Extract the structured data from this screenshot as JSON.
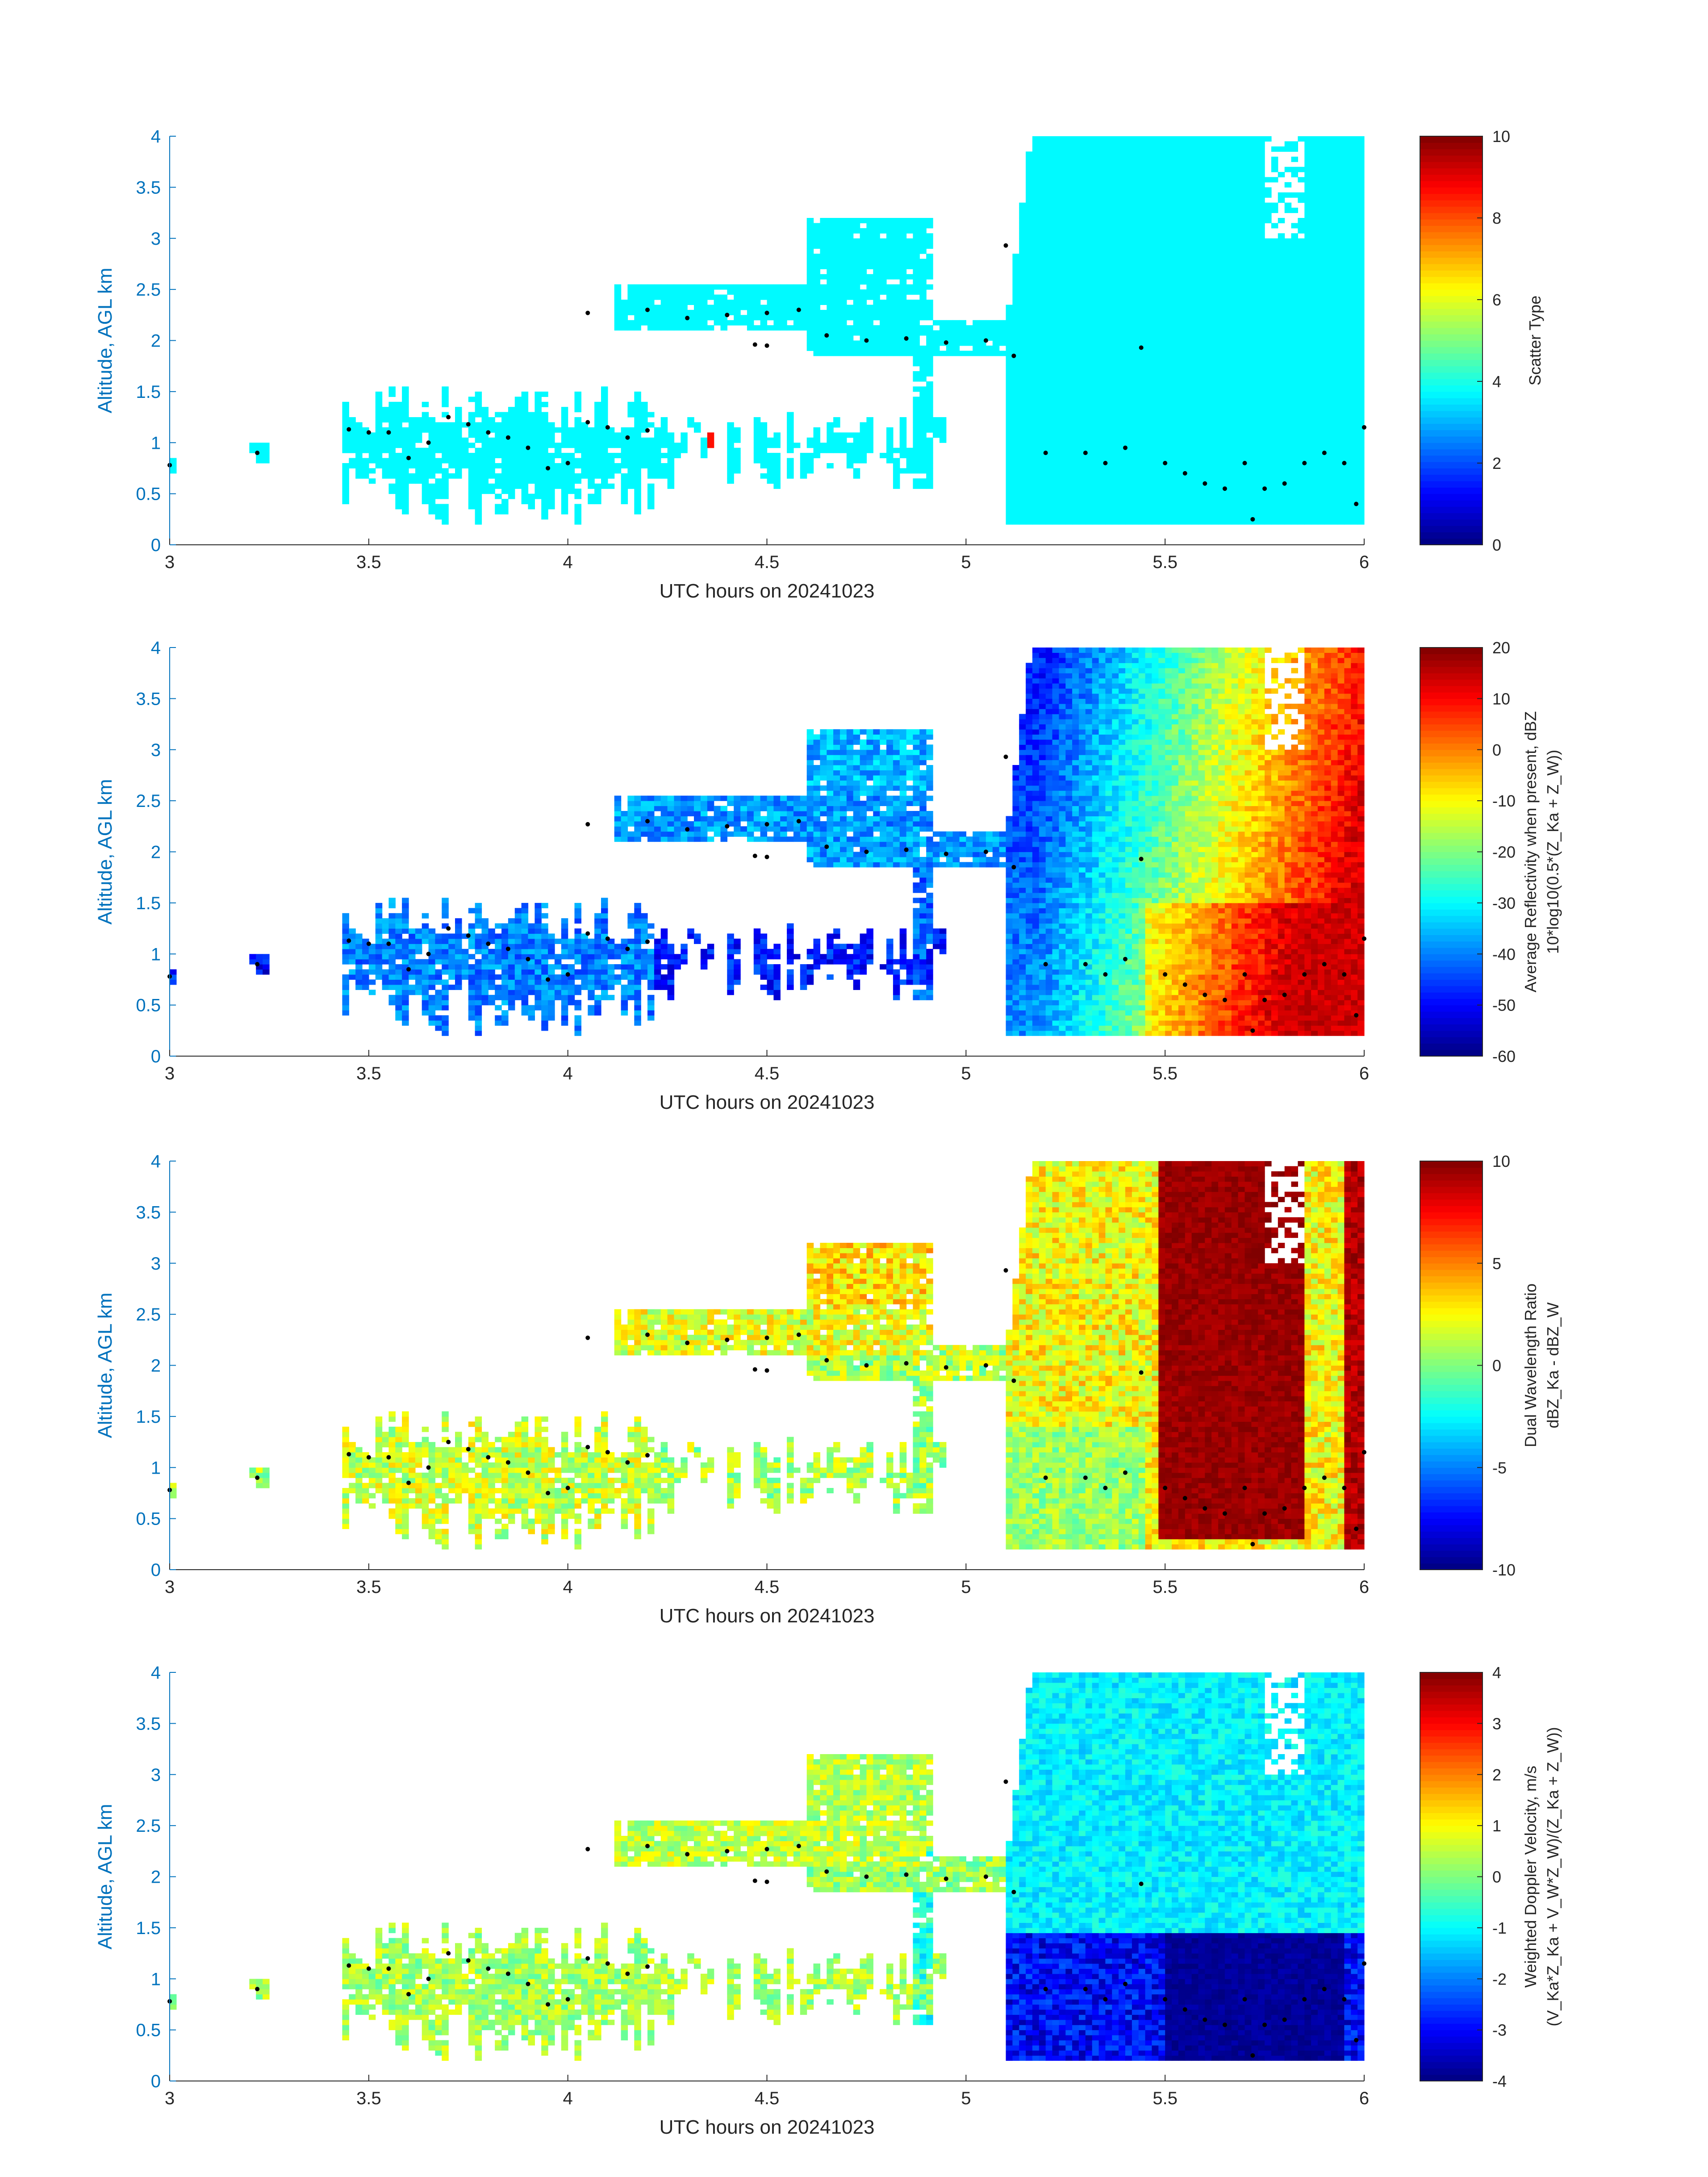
{
  "figure": {
    "panels_count": 4
  },
  "chart_data": [
    {
      "type": "heatmap",
      "title": "",
      "xlabel": "UTC hours on 20241023",
      "ylabel": "Altitude, AGL km",
      "xlim": [
        3,
        6
      ],
      "ylim": [
        0,
        4
      ],
      "xticks": [
        3,
        3.5,
        4,
        4.5,
        5,
        5.5,
        6
      ],
      "xtick_labels": [
        "3",
        "3.5",
        "4",
        "4.5",
        "5",
        "5.5",
        "6"
      ],
      "yticks": [
        0,
        0.5,
        1,
        1.5,
        2,
        2.5,
        3,
        3.5,
        4
      ],
      "ytick_labels": [
        "0",
        "0.5",
        "1",
        "1.5",
        "2",
        "2.5",
        "3",
        "3.5",
        "4"
      ],
      "colorbar": {
        "label_lines": [
          "Scatter Type"
        ],
        "range": [
          0,
          10
        ],
        "ticks": [
          0,
          2,
          4,
          6,
          8,
          10
        ],
        "tick_labels": [
          "0",
          "2",
          "4",
          "6",
          "8",
          "10"
        ],
        "colormap": "jet"
      },
      "field": "scatter_type",
      "dominant_value": 3.7,
      "notes_values": {
        "isolated_high_value": 8.6
      }
    },
    {
      "type": "heatmap",
      "title": "",
      "xlabel": "UTC hours on 20241023",
      "ylabel": "Altitude, AGL km",
      "xlim": [
        3,
        6
      ],
      "ylim": [
        0,
        4
      ],
      "xticks": [
        3,
        3.5,
        4,
        4.5,
        5,
        5.5,
        6
      ],
      "xtick_labels": [
        "3",
        "3.5",
        "4",
        "4.5",
        "5",
        "5.5",
        "6"
      ],
      "yticks": [
        0,
        0.5,
        1,
        1.5,
        2,
        2.5,
        3,
        3.5,
        4
      ],
      "ytick_labels": [
        "0",
        "0.5",
        "1",
        "1.5",
        "2",
        "2.5",
        "3",
        "3.5",
        "4"
      ],
      "colorbar": {
        "label_lines": [
          "Average Reflectivity when present, dBZ",
          "10*log10(0.5*(Z_Ka + Z_W))"
        ],
        "range": [
          -60,
          20
        ],
        "ticks": [
          -60,
          -50,
          -40,
          -30,
          -20,
          -10,
          0,
          10,
          20
        ],
        "tick_labels": [
          "-60",
          "-50",
          "-40",
          "-30",
          "-20",
          "-10",
          "0",
          "10",
          "20"
        ],
        "colormap": "jet"
      },
      "field": "reflectivity"
    },
    {
      "type": "heatmap",
      "title": "",
      "xlabel": "UTC hours on 20241023",
      "ylabel": "Altitude, AGL km",
      "xlim": [
        3,
        6
      ],
      "ylim": [
        0,
        4
      ],
      "xticks": [
        3,
        3.5,
        4,
        4.5,
        5,
        5.5,
        6
      ],
      "xtick_labels": [
        "3",
        "3.5",
        "4",
        "4.5",
        "5",
        "5.5",
        "6"
      ],
      "yticks": [
        0,
        0.5,
        1,
        1.5,
        2,
        2.5,
        3,
        3.5,
        4
      ],
      "ytick_labels": [
        "0",
        "0.5",
        "1",
        "1.5",
        "2",
        "2.5",
        "3",
        "3.5",
        "4"
      ],
      "colorbar": {
        "label_lines": [
          "Dual Wavelength Ratio",
          "dBZ_Ka - dBZ_W"
        ],
        "range": [
          -10,
          10
        ],
        "ticks": [
          -10,
          -5,
          0,
          5,
          10
        ],
        "tick_labels": [
          "-10",
          "-5",
          "0",
          "5",
          "10"
        ],
        "colormap": "jet"
      },
      "field": "dwr"
    },
    {
      "type": "heatmap",
      "title": "",
      "xlabel": "UTC hours on 20241023",
      "ylabel": "Altitude, AGL km",
      "xlim": [
        3,
        6
      ],
      "ylim": [
        0,
        4
      ],
      "xticks": [
        3,
        3.5,
        4,
        4.5,
        5,
        5.5,
        6
      ],
      "xtick_labels": [
        "3",
        "3.5",
        "4",
        "4.5",
        "5",
        "5.5",
        "6"
      ],
      "yticks": [
        0,
        0.5,
        1,
        1.5,
        2,
        2.5,
        3,
        3.5,
        4
      ],
      "ytick_labels": [
        "0",
        "0.5",
        "1",
        "1.5",
        "2",
        "2.5",
        "3",
        "3.5",
        "4"
      ],
      "colorbar": {
        "label_lines": [
          "Weighted Doppler Velocity, m/s",
          "(V_Ka*Z_Ka + V_W*Z_W)/(Z_Ka + Z_W))"
        ],
        "range": [
          -4,
          4
        ],
        "ticks": [
          -4,
          -3,
          -2,
          -1,
          0,
          1,
          2,
          3,
          4
        ],
        "tick_labels": [
          "-4",
          "-3",
          "-2",
          "-1",
          "0",
          "1",
          "2",
          "3",
          "4"
        ],
        "colormap": "jet"
      },
      "field": "velocity"
    }
  ],
  "cloud_regions": [
    {
      "name": "low_layer_early",
      "t": [
        3.43,
        4.22
      ],
      "z": [
        0.2,
        1.55
      ],
      "ref": -40,
      "dwr": 1.5,
      "vel": 0.3
    },
    {
      "name": "isolated_patch_3.0",
      "t": [
        3.0,
        3.02
      ],
      "z": [
        0.7,
        0.85
      ],
      "ref": -48,
      "dwr": 0.5,
      "vel": 0.2
    },
    {
      "name": "isolated_patch_3.2",
      "t": [
        3.2,
        3.25
      ],
      "z": [
        0.8,
        1.0
      ],
      "ref": -50,
      "dwr": 0.5,
      "vel": 0.3
    },
    {
      "name": "scattered_low_mid",
      "t": [
        4.22,
        4.95
      ],
      "z": [
        0.55,
        1.3
      ],
      "ref": -48,
      "dwr": 0.8,
      "vel": 0.3
    },
    {
      "name": "elevated_band",
      "t": [
        4.12,
        4.9
      ],
      "z": [
        2.1,
        2.55
      ],
      "ref": -38,
      "dwr": 2.0,
      "vel": 0.5
    },
    {
      "name": "elevated_band_upper",
      "t": [
        4.6,
        4.92
      ],
      "z": [
        2.3,
        3.2
      ],
      "ref": -36,
      "dwr": 3.0,
      "vel": 0.4
    },
    {
      "name": "middle_band",
      "t": [
        4.6,
        5.1
      ],
      "z": [
        1.85,
        2.2
      ],
      "ref": -38,
      "dwr": 1.0,
      "vel": 0.2
    },
    {
      "name": "fall_streak_4.9",
      "t": [
        4.86,
        4.92
      ],
      "z": [
        0.55,
        2.8
      ],
      "ref": -42,
      "dwr": 0.5,
      "vel": -0.8
    },
    {
      "name": "deep_cloud",
      "t": [
        5.1,
        6.0
      ],
      "z": [
        0.2,
        4.0
      ],
      "ref": -8,
      "dwr": 4.0,
      "vel": -1.0
    }
  ],
  "profile_dots": [
    {
      "t": 3.0,
      "z": 0.78
    },
    {
      "t": 3.22,
      "z": 0.9
    },
    {
      "t": 3.45,
      "z": 1.13
    },
    {
      "t": 3.5,
      "z": 1.1
    },
    {
      "t": 3.55,
      "z": 1.1
    },
    {
      "t": 3.6,
      "z": 0.85
    },
    {
      "t": 3.65,
      "z": 1.0
    },
    {
      "t": 3.7,
      "z": 1.25
    },
    {
      "t": 3.75,
      "z": 1.18
    },
    {
      "t": 3.8,
      "z": 1.1
    },
    {
      "t": 3.85,
      "z": 1.05
    },
    {
      "t": 3.9,
      "z": 0.95
    },
    {
      "t": 3.95,
      "z": 0.75
    },
    {
      "t": 4.0,
      "z": 0.8
    },
    {
      "t": 4.05,
      "z": 1.2
    },
    {
      "t": 4.1,
      "z": 1.15
    },
    {
      "t": 4.15,
      "z": 1.05
    },
    {
      "t": 4.2,
      "z": 1.12
    },
    {
      "t": 4.05,
      "z": 2.27
    },
    {
      "t": 4.2,
      "z": 2.3
    },
    {
      "t": 4.3,
      "z": 2.22
    },
    {
      "t": 4.4,
      "z": 2.25
    },
    {
      "t": 4.5,
      "z": 2.27
    },
    {
      "t": 4.58,
      "z": 2.3
    },
    {
      "t": 4.47,
      "z": 1.96
    },
    {
      "t": 4.5,
      "z": 1.95
    },
    {
      "t": 4.65,
      "z": 2.05
    },
    {
      "t": 4.75,
      "z": 2.0
    },
    {
      "t": 4.85,
      "z": 2.02
    },
    {
      "t": 4.95,
      "z": 1.98
    },
    {
      "t": 5.05,
      "z": 2.0
    },
    {
      "t": 5.1,
      "z": 2.93
    },
    {
      "t": 5.12,
      "z": 1.85
    },
    {
      "t": 5.2,
      "z": 0.9
    },
    {
      "t": 5.3,
      "z": 0.9
    },
    {
      "t": 5.35,
      "z": 0.8
    },
    {
      "t": 5.4,
      "z": 0.95
    },
    {
      "t": 5.44,
      "z": 1.93
    },
    {
      "t": 5.5,
      "z": 0.8
    },
    {
      "t": 5.55,
      "z": 0.7
    },
    {
      "t": 5.6,
      "z": 0.6
    },
    {
      "t": 5.65,
      "z": 0.55
    },
    {
      "t": 5.7,
      "z": 0.8
    },
    {
      "t": 5.72,
      "z": 0.25
    },
    {
      "t": 5.75,
      "z": 0.55
    },
    {
      "t": 5.8,
      "z": 0.6
    },
    {
      "t": 5.85,
      "z": 0.8
    },
    {
      "t": 5.9,
      "z": 0.9
    },
    {
      "t": 5.95,
      "z": 0.8
    },
    {
      "t": 5.98,
      "z": 0.4
    },
    {
      "t": 6.0,
      "z": 1.15
    }
  ]
}
